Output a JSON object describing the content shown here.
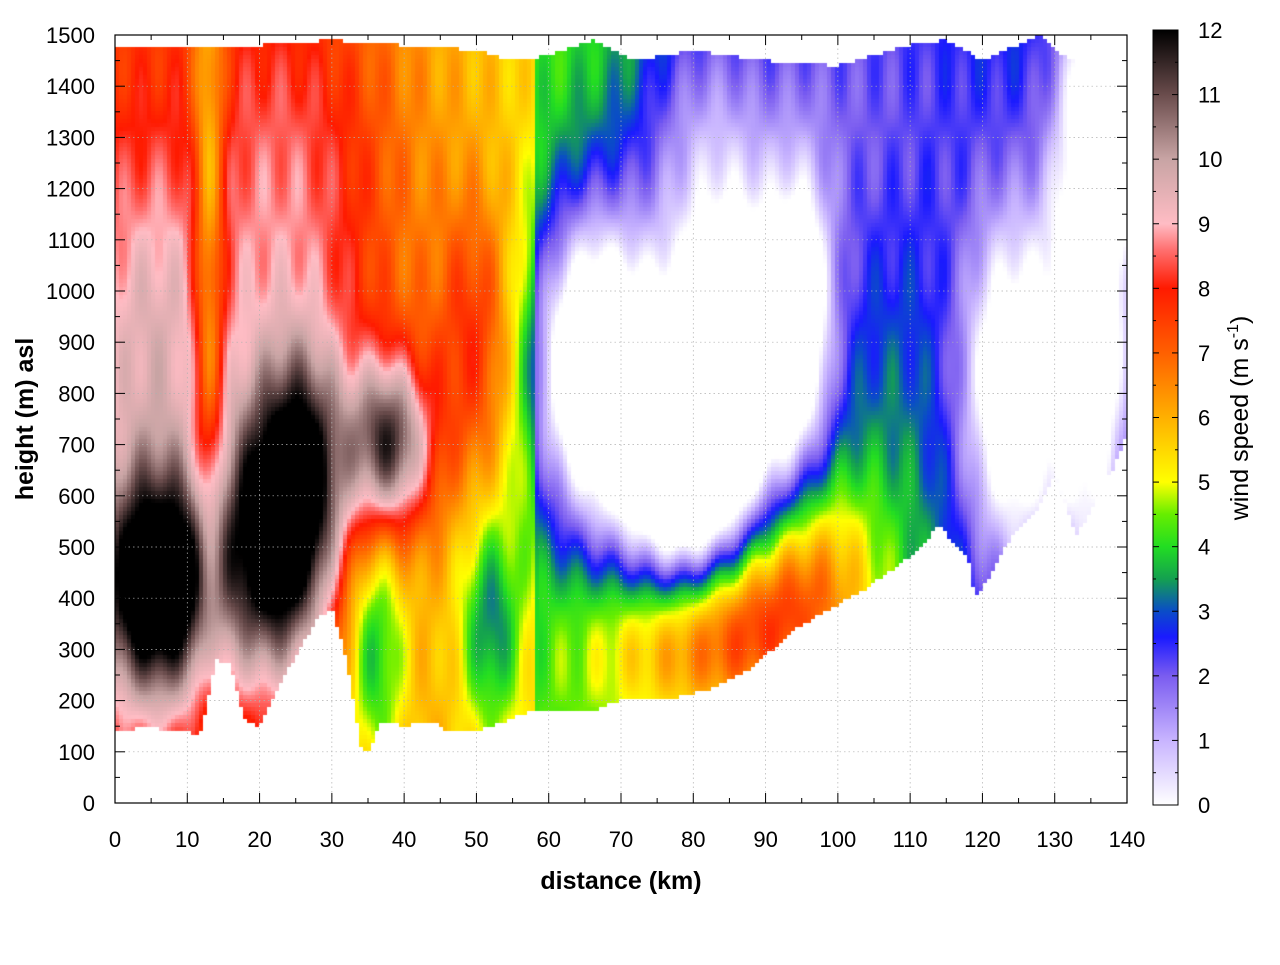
{
  "chart_data": {
    "type": "heatmap",
    "title": "",
    "xlabel": "distance (km)",
    "ylabel": "height (m) asl",
    "colorbar_label": "wind speed (m s",
    "colorbar_label_sup": "-1",
    "colorbar_label_end": ")",
    "xlim": [
      0,
      140
    ],
    "ylim": [
      0,
      1500
    ],
    "clim": [
      0,
      12
    ],
    "x_ticks": [
      "0",
      "10",
      "20",
      "30",
      "40",
      "50",
      "60",
      "70",
      "80",
      "90",
      "100",
      "110",
      "120",
      "130",
      "140"
    ],
    "y_ticks": [
      "0",
      "100",
      "200",
      "300",
      "400",
      "500",
      "600",
      "700",
      "800",
      "900",
      "1000",
      "1100",
      "1200",
      "1300",
      "1400",
      "1500"
    ],
    "c_ticks": [
      "0",
      "1",
      "2",
      "3",
      "4",
      "5",
      "6",
      "7",
      "8",
      "9",
      "10",
      "11",
      "12"
    ],
    "grid": true,
    "colormap": [
      [
        0,
        "#ffffff"
      ],
      [
        1,
        "#c8b4ff"
      ],
      [
        2,
        "#7a5cf0"
      ],
      [
        2.6,
        "#1a1aff"
      ],
      [
        3,
        "#0a4cc8"
      ],
      [
        3.5,
        "#14a050"
      ],
      [
        4,
        "#22dd22"
      ],
      [
        4.5,
        "#66ee00"
      ],
      [
        5,
        "#ffff00"
      ],
      [
        6,
        "#ffb000"
      ],
      [
        7,
        "#ff6000"
      ],
      [
        8,
        "#ff1a00"
      ],
      [
        8.6,
        "#ff7070"
      ],
      [
        9,
        "#ffbcc4"
      ],
      [
        10,
        "#c8a4a4"
      ],
      [
        11,
        "#6a4c4c"
      ],
      [
        12,
        "#000000"
      ]
    ],
    "terrain": [
      [
        0,
        140
      ],
      [
        2,
        140
      ],
      [
        4,
        150
      ],
      [
        6,
        145
      ],
      [
        8,
        140
      ],
      [
        10,
        140
      ],
      [
        11,
        130
      ],
      [
        12,
        140
      ],
      [
        14,
        280
      ],
      [
        16,
        270
      ],
      [
        18,
        160
      ],
      [
        20,
        150
      ],
      [
        24,
        260
      ],
      [
        28,
        360
      ],
      [
        30,
        380
      ],
      [
        32,
        280
      ],
      [
        34,
        110
      ],
      [
        35,
        100
      ],
      [
        37,
        160
      ],
      [
        40,
        150
      ],
      [
        44,
        160
      ],
      [
        46,
        140
      ],
      [
        50,
        140
      ],
      [
        54,
        160
      ],
      [
        58,
        180
      ],
      [
        62,
        180
      ],
      [
        66,
        180
      ],
      [
        70,
        200
      ],
      [
        76,
        200
      ],
      [
        82,
        220
      ],
      [
        88,
        260
      ],
      [
        94,
        340
      ],
      [
        98,
        370
      ],
      [
        104,
        420
      ],
      [
        110,
        480
      ],
      [
        114,
        540
      ],
      [
        118,
        480
      ],
      [
        119,
        400
      ],
      [
        121,
        440
      ],
      [
        124,
        520
      ],
      [
        128,
        580
      ],
      [
        130,
        640
      ],
      [
        132,
        560
      ],
      [
        133,
        520
      ],
      [
        135,
        570
      ],
      [
        138,
        650
      ],
      [
        140,
        720
      ]
    ],
    "top": [
      [
        0,
        1480
      ],
      [
        10,
        1480
      ],
      [
        20,
        1480
      ],
      [
        30,
        1490
      ],
      [
        40,
        1480
      ],
      [
        50,
        1470
      ],
      [
        55,
        1450
      ],
      [
        60,
        1460
      ],
      [
        66,
        1490
      ],
      [
        72,
        1450
      ],
      [
        80,
        1470
      ],
      [
        90,
        1450
      ],
      [
        100,
        1440
      ],
      [
        110,
        1480
      ],
      [
        115,
        1490
      ],
      [
        120,
        1450
      ],
      [
        128,
        1500
      ],
      [
        132,
        1450
      ],
      [
        140,
        1470
      ]
    ],
    "features": [
      {
        "x": 6,
        "y": 420,
        "sx": 6,
        "sy": 160,
        "a": 6.5
      },
      {
        "x": 22,
        "y": 520,
        "sx": 5,
        "sy": 200,
        "a": 6.0
      },
      {
        "x": 27,
        "y": 650,
        "sx": 4,
        "sy": 180,
        "a": 3.0
      },
      {
        "x": 38,
        "y": 700,
        "sx": 4,
        "sy": 120,
        "a": 5.0
      },
      {
        "x": 5,
        "y": 900,
        "sx": 7,
        "sy": 250,
        "a": 2.0
      },
      {
        "x": 25,
        "y": 1150,
        "sx": 10,
        "sy": 350,
        "a": 2.0
      },
      {
        "x": 13,
        "y": 1050,
        "sx": 1.5,
        "sy": 500,
        "a": -2.5
      },
      {
        "x": 50,
        "y": 900,
        "sx": 4,
        "sy": 200,
        "a": 2.0
      },
      {
        "x": 52,
        "y": 350,
        "sx": 3,
        "sy": 150,
        "a": -2.5
      },
      {
        "x": 36,
        "y": 300,
        "sx": 3,
        "sy": 180,
        "a": -2.5
      },
      {
        "x": 66,
        "y": 850,
        "sx": 6,
        "sy": 220,
        "a": -6.5
      },
      {
        "x": 78,
        "y": 650,
        "sx": 6,
        "sy": 200,
        "a": -5.5
      },
      {
        "x": 86,
        "y": 830,
        "sx": 7,
        "sy": 250,
        "a": -6.0
      },
      {
        "x": 95,
        "y": 950,
        "sx": 3,
        "sy": 200,
        "a": -3.0
      },
      {
        "x": 82,
        "y": 330,
        "sx": 10,
        "sy": 120,
        "a": 4.0
      },
      {
        "x": 95,
        "y": 450,
        "sx": 8,
        "sy": 150,
        "a": 3.0
      },
      {
        "x": 124,
        "y": 800,
        "sx": 5,
        "sy": 250,
        "a": -4.5
      },
      {
        "x": 135,
        "y": 1000,
        "sx": 4,
        "sy": 400,
        "a": -4.5
      },
      {
        "x": 138,
        "y": 1350,
        "sx": 3,
        "sy": 150,
        "a": -4.0
      },
      {
        "x": 100,
        "y": 1350,
        "sx": 15,
        "sy": 300,
        "a": -1.5
      },
      {
        "x": 80,
        "y": 1300,
        "sx": 6,
        "sy": 200,
        "a": -1.5
      }
    ]
  }
}
